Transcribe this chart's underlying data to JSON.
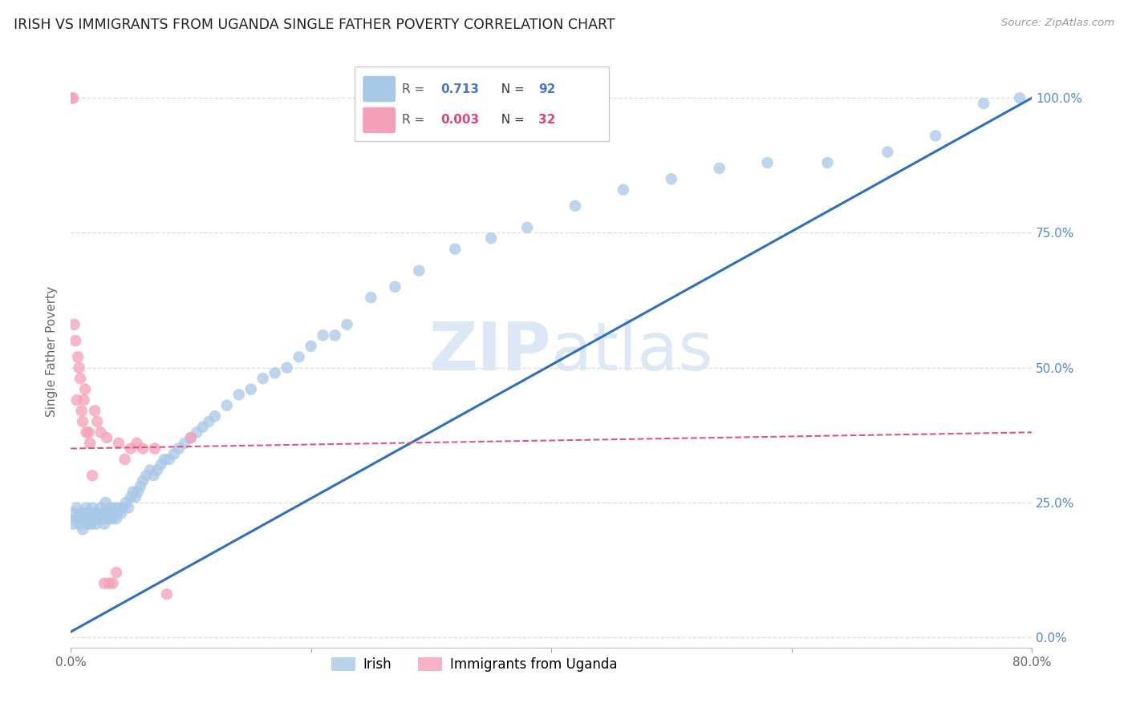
{
  "title": "IRISH VS IMMIGRANTS FROM UGANDA SINGLE FATHER POVERTY CORRELATION CHART",
  "source": "Source: ZipAtlas.com",
  "ylabel": "Single Father Poverty",
  "xlim": [
    0.0,
    0.8
  ],
  "ylim": [
    -0.02,
    1.08
  ],
  "ytick_vals": [
    0.0,
    0.25,
    0.5,
    0.75,
    1.0
  ],
  "ytick_labels": [
    "0.0%",
    "25.0%",
    "50.0%",
    "75.0%",
    "100.0%"
  ],
  "xtick_vals": [
    0.0,
    0.2,
    0.4,
    0.6,
    0.8
  ],
  "xtick_labels": [
    "0.0%",
    "",
    "",
    "",
    "80.0%"
  ],
  "blue_color": "#a8c8e8",
  "pink_color": "#f4a0b8",
  "blue_line_color": "#3070b8",
  "pink_line_color": "#e05878",
  "grid_color": "#dddddd",
  "watermark_color": "#dce8f5",
  "irish_x": [
    0.002,
    0.003,
    0.004,
    0.005,
    0.006,
    0.007,
    0.008,
    0.009,
    0.01,
    0.011,
    0.012,
    0.013,
    0.014,
    0.015,
    0.016,
    0.017,
    0.018,
    0.019,
    0.02,
    0.021,
    0.022,
    0.023,
    0.024,
    0.025,
    0.026,
    0.027,
    0.028,
    0.029,
    0.03,
    0.031,
    0.032,
    0.033,
    0.034,
    0.035,
    0.036,
    0.037,
    0.038,
    0.039,
    0.04,
    0.042,
    0.044,
    0.046,
    0.048,
    0.05,
    0.052,
    0.054,
    0.056,
    0.058,
    0.06,
    0.063,
    0.066,
    0.069,
    0.072,
    0.075,
    0.078,
    0.082,
    0.086,
    0.09,
    0.095,
    0.1,
    0.105,
    0.11,
    0.115,
    0.12,
    0.13,
    0.14,
    0.15,
    0.16,
    0.17,
    0.18,
    0.19,
    0.2,
    0.21,
    0.22,
    0.23,
    0.25,
    0.27,
    0.29,
    0.32,
    0.35,
    0.38,
    0.42,
    0.46,
    0.5,
    0.54,
    0.58,
    0.63,
    0.68,
    0.72,
    0.76,
    0.79
  ],
  "irish_y": [
    0.21,
    0.23,
    0.22,
    0.24,
    0.22,
    0.21,
    0.23,
    0.22,
    0.2,
    0.23,
    0.22,
    0.24,
    0.21,
    0.22,
    0.23,
    0.21,
    0.24,
    0.22,
    0.23,
    0.21,
    0.22,
    0.23,
    0.22,
    0.24,
    0.22,
    0.23,
    0.21,
    0.25,
    0.22,
    0.23,
    0.22,
    0.24,
    0.23,
    0.22,
    0.23,
    0.24,
    0.22,
    0.23,
    0.24,
    0.23,
    0.24,
    0.25,
    0.24,
    0.26,
    0.27,
    0.26,
    0.27,
    0.28,
    0.29,
    0.3,
    0.31,
    0.3,
    0.31,
    0.32,
    0.33,
    0.33,
    0.34,
    0.35,
    0.36,
    0.37,
    0.38,
    0.39,
    0.4,
    0.41,
    0.43,
    0.45,
    0.46,
    0.48,
    0.49,
    0.5,
    0.52,
    0.54,
    0.56,
    0.56,
    0.58,
    0.63,
    0.65,
    0.68,
    0.72,
    0.74,
    0.76,
    0.8,
    0.83,
    0.85,
    0.87,
    0.88,
    0.88,
    0.9,
    0.93,
    0.99,
    1.0
  ],
  "uganda_x": [
    0.001,
    0.002,
    0.003,
    0.004,
    0.005,
    0.006,
    0.007,
    0.008,
    0.009,
    0.01,
    0.011,
    0.012,
    0.013,
    0.015,
    0.016,
    0.018,
    0.02,
    0.022,
    0.025,
    0.028,
    0.03,
    0.032,
    0.035,
    0.038,
    0.04,
    0.045,
    0.05,
    0.055,
    0.06,
    0.07,
    0.08,
    0.1
  ],
  "uganda_y": [
    1.0,
    1.0,
    0.58,
    0.55,
    0.44,
    0.52,
    0.5,
    0.48,
    0.42,
    0.4,
    0.44,
    0.46,
    0.38,
    0.38,
    0.36,
    0.3,
    0.42,
    0.4,
    0.38,
    0.1,
    0.37,
    0.1,
    0.1,
    0.12,
    0.36,
    0.33,
    0.35,
    0.36,
    0.35,
    0.35,
    0.08,
    0.37
  ],
  "irish_line_x": [
    0.0,
    0.8
  ],
  "irish_line_y": [
    0.01,
    1.0
  ],
  "uganda_line_x": [
    0.0,
    0.8
  ],
  "uganda_line_y": [
    0.35,
    0.38
  ]
}
